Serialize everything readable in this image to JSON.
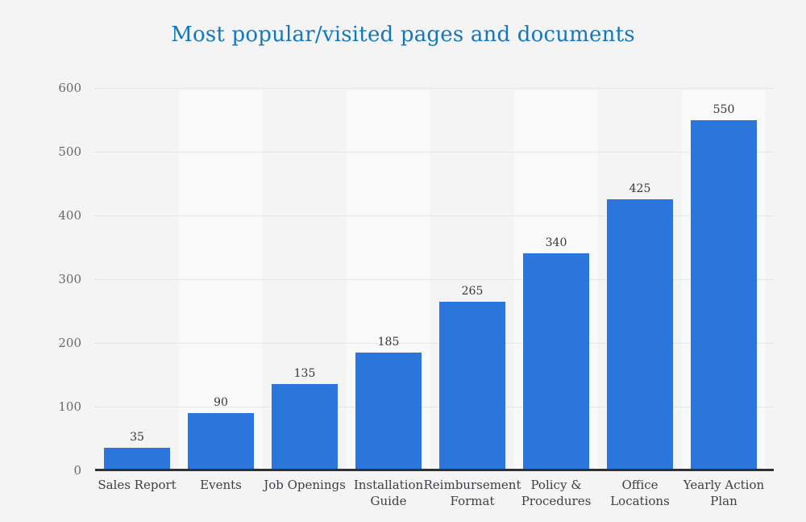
{
  "page": {
    "background": "#f4f4f4"
  },
  "chart_data": {
    "type": "bar",
    "title": "Most popular/visited pages and documents",
    "categories": [
      "Sales Report",
      "Events",
      "Job Openings",
      "Installation Guide",
      "Reimbursement Format",
      "Policy & Procedures",
      "Office Locations",
      "Yearly Action Plan"
    ],
    "category_lines": [
      [
        "Sales Report"
      ],
      [
        "Events"
      ],
      [
        "Job Openings"
      ],
      [
        "Installation",
        "Guide"
      ],
      [
        "Reimbursement",
        "Format"
      ],
      [
        "Policy &",
        "Procedures"
      ],
      [
        "Office",
        "Locations"
      ],
      [
        "Yearly Action",
        "Plan"
      ]
    ],
    "values": [
      35,
      90,
      135,
      185,
      265,
      340,
      425,
      550
    ],
    "xlabel": "",
    "ylabel": "",
    "ylim": [
      0,
      600
    ],
    "yticks": [
      0,
      100,
      200,
      300,
      400,
      500,
      600
    ],
    "grid": "horizontal-dotted",
    "legend_position": "none",
    "colors": {
      "bar": "#2b76dd",
      "title": "#1477bd",
      "plot_band": "#f9f9f9",
      "axis_line": "#2e3237",
      "tick_label": "#67696c",
      "category_label": "#3b3f45",
      "value_label": "#32363b",
      "gridline": "#d5d5d5",
      "background": "#f4f4f4"
    }
  }
}
